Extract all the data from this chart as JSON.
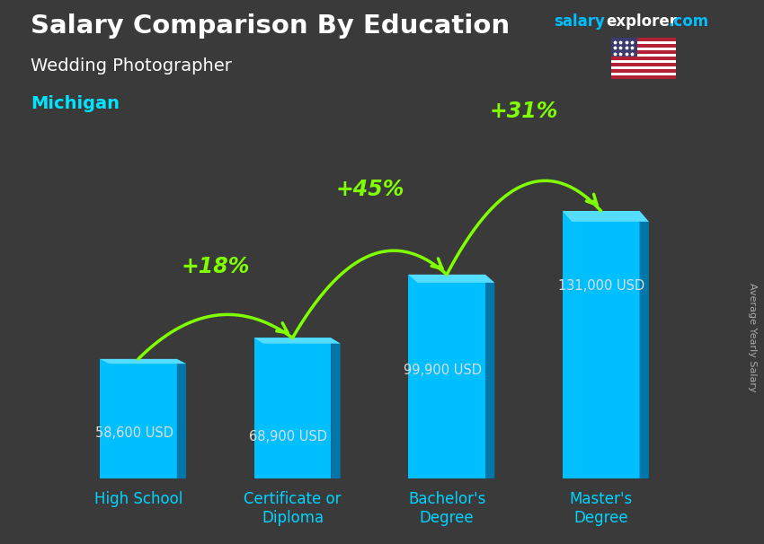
{
  "title": "Salary Comparison By Education",
  "subtitle": "Wedding Photographer",
  "location": "Michigan",
  "ylabel": "Average Yearly Salary",
  "categories": [
    "High School",
    "Certificate or\nDiploma",
    "Bachelor's\nDegree",
    "Master's\nDegree"
  ],
  "values": [
    58600,
    68900,
    99900,
    131000
  ],
  "value_labels": [
    "58,600 USD",
    "68,900 USD",
    "99,900 USD",
    "131,000 USD"
  ],
  "pct_labels": [
    "+18%",
    "+45%",
    "+31%"
  ],
  "bar_color": "#00bfff",
  "bar_color_dark": "#0077aa",
  "bar_color_top": "#55ddff",
  "pct_color": "#7fff00",
  "title_color": "#ffffff",
  "subtitle_color": "#ffffff",
  "location_color": "#00e5ff",
  "xtick_color": "#00d4ff",
  "value_label_color": "#dddddd",
  "background_color": "#3a3a3a",
  "brand_salary_color": "#00bfff",
  "brand_explorer_color": "#ffffff",
  "brand_com_color": "#00bfff",
  "ylim": [
    0,
    165000
  ],
  "bar_width": 0.5,
  "depth": 0.06,
  "figsize": [
    8.5,
    6.06
  ],
  "dpi": 100
}
